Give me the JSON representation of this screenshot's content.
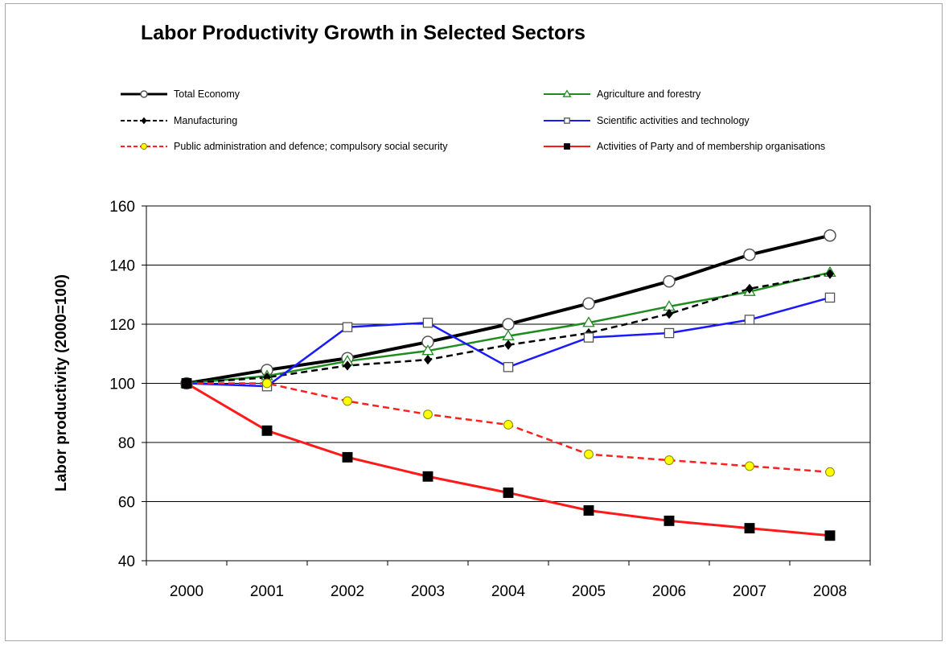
{
  "chart_data": {
    "type": "line",
    "title": "Labor Productivity Growth in Selected Sectors",
    "xlabel": "",
    "ylabel": "Labor productivity (2000=100)",
    "x": [
      "2000",
      "2001",
      "2002",
      "2003",
      "2004",
      "2005",
      "2006",
      "2007",
      "2008"
    ],
    "ylim": [
      40,
      160
    ],
    "yticks": [
      "40",
      "60",
      "80",
      "100",
      "120",
      "140",
      "160"
    ],
    "grid": "horizontal",
    "legend_position": "top",
    "series": [
      {
        "name": "Total Economy",
        "values": [
          100,
          104.5,
          108.5,
          114,
          120,
          127,
          134.5,
          143.5,
          150
        ],
        "color": "#000000",
        "dash": "solid",
        "marker": "open-circle",
        "marker_fill": "#ffffff"
      },
      {
        "name": "Agriculture and forestry",
        "values": [
          100,
          102.5,
          107.5,
          111,
          116,
          120.5,
          126,
          131,
          137.5
        ],
        "color": "#1e8c1e",
        "dash": "solid",
        "marker": "open-triangle",
        "marker_fill": "#ffffff"
      },
      {
        "name": "Manufacturing",
        "values": [
          100,
          102,
          106,
          108,
          113,
          117,
          123.5,
          132,
          137
        ],
        "color": "#000000",
        "dash": "dashed",
        "marker": "diamond",
        "marker_fill": "#000000"
      },
      {
        "name": "Scientific activities and technology",
        "values": [
          100,
          99,
          119,
          120.5,
          105.5,
          115.5,
          117,
          121.5,
          129
        ],
        "color": "#1a1aff",
        "dash": "solid",
        "marker": "open-square",
        "marker_fill": "#ffffff"
      },
      {
        "name": "Public administration and defence; compulsory social security",
        "values": [
          100,
          100,
          94,
          89.5,
          86,
          76,
          74,
          72,
          70
        ],
        "color": "#ff2020",
        "dash": "dashed",
        "marker": "circle",
        "marker_fill": "#ffff00"
      },
      {
        "name": "Activities of Party and of membership organisations",
        "values": [
          100,
          84,
          75,
          68.5,
          63,
          57,
          53.5,
          51,
          48.5
        ],
        "color": "#ff1a1a",
        "dash": "solid",
        "marker": "square",
        "marker_fill": "#000000"
      }
    ]
  }
}
